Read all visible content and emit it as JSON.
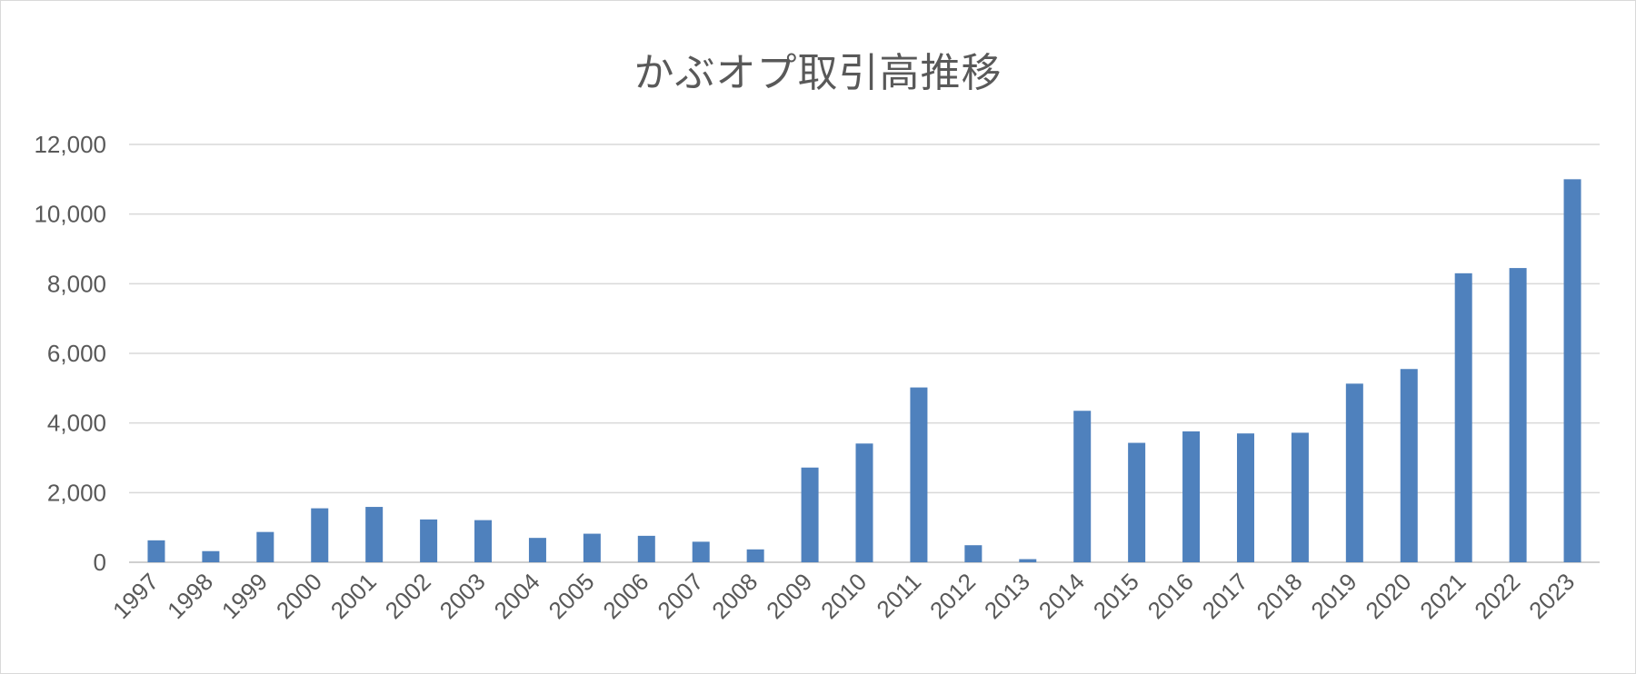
{
  "chart_data": {
    "type": "bar",
    "title": "かぶオプ取引高推移",
    "xlabel": "",
    "ylabel": "",
    "ylim": [
      0,
      12000
    ],
    "yticks": [
      "0",
      "2,000",
      "4,000",
      "6,000",
      "8,000",
      "10,000",
      "12,000"
    ],
    "grid": true,
    "legend": "none",
    "bar_color": "#4f81bd",
    "categories": [
      "1997",
      "1998",
      "1999",
      "2000",
      "2001",
      "2002",
      "2003",
      "2004",
      "2005",
      "2006",
      "2007",
      "2008",
      "2009",
      "2010",
      "2011",
      "2012",
      "2013",
      "2014",
      "2015",
      "2016",
      "2017",
      "2018",
      "2019",
      "2020",
      "2021",
      "2022",
      "2023"
    ],
    "values": [
      630,
      320,
      870,
      1550,
      1590,
      1230,
      1210,
      700,
      820,
      760,
      590,
      370,
      2720,
      3410,
      5020,
      490,
      90,
      4350,
      3430,
      3760,
      3700,
      3720,
      5130,
      5550,
      8300,
      8450,
      11000
    ]
  }
}
